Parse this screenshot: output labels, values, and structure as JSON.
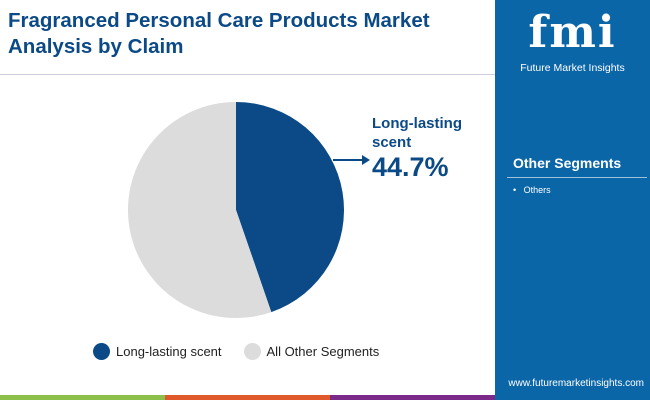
{
  "title": "Fragranced Personal Care Products Market Analysis by Claim",
  "brand": {
    "logo_text": "fmi",
    "name": "Future Market Insights",
    "url": "www.futuremarketinsights.com"
  },
  "side_panel": {
    "heading": "Other Segments",
    "items": [
      "Others"
    ]
  },
  "colors": {
    "primary": "#0b4a86",
    "other": "#dcdcdc",
    "panel": "#0b66a8",
    "bars": [
      "#8dc04a",
      "#e0592a",
      "#7b2a8a"
    ]
  },
  "chart_data": {
    "type": "pie",
    "slices": [
      {
        "label": "Long-lasting scent",
        "value": 44.7,
        "color": "#0b4a86"
      },
      {
        "label": "All Other Segments",
        "value": 55.3,
        "color": "#dcdcdc"
      }
    ],
    "callout": {
      "label": "Long-lasting scent",
      "value_text": "44.7%"
    },
    "legend": "bottom"
  }
}
